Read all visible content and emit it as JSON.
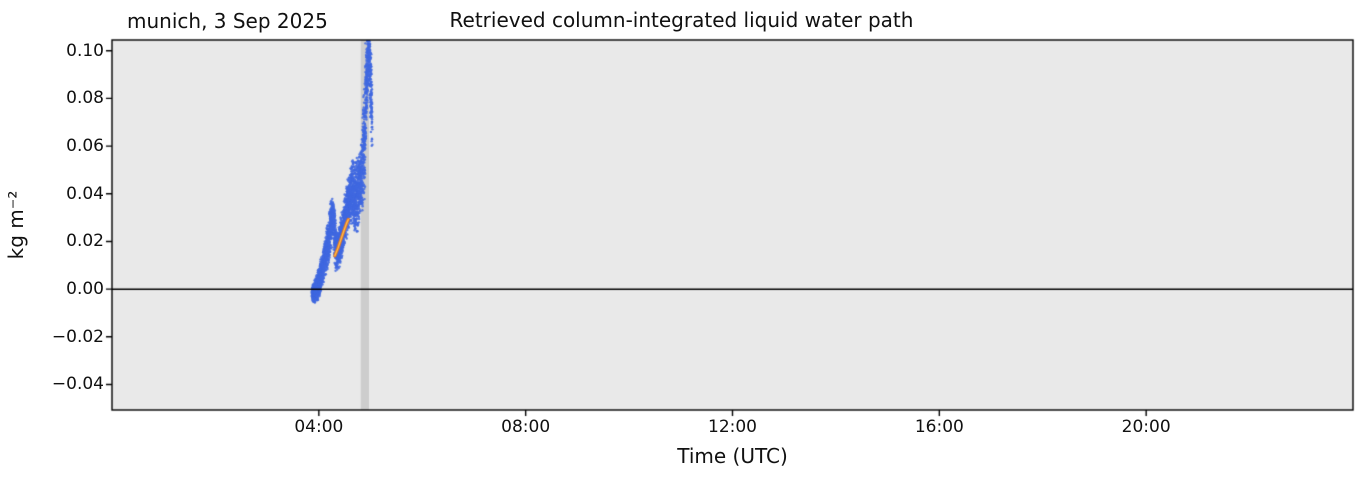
{
  "chart_data": {
    "type": "scatter",
    "title": "Retrieved column-integrated liquid water path",
    "subtitle_left": "munich, 3 Sep 2025",
    "xlabel": "Time (UTC)",
    "ylabel": "kg m⁻²",
    "x_range_hours": [
      0,
      24
    ],
    "y_range": [
      -0.0507,
      0.1045
    ],
    "grid": false,
    "legend": "none",
    "plot_bg_color": "#e9e9e9",
    "frame_color": "#000000",
    "x_ticks": [
      {
        "hour": 4,
        "label": "04:00"
      },
      {
        "hour": 8,
        "label": "08:00"
      },
      {
        "hour": 12,
        "label": "12:00"
      },
      {
        "hour": 16,
        "label": "16:00"
      },
      {
        "hour": 20,
        "label": "20:00"
      }
    ],
    "y_ticks": [
      {
        "value": 0.1,
        "label": "0.10"
      },
      {
        "value": 0.08,
        "label": "0.08"
      },
      {
        "value": 0.06,
        "label": "0.06"
      },
      {
        "value": 0.04,
        "label": "0.04"
      },
      {
        "value": 0.02,
        "label": "0.02"
      },
      {
        "value": 0.0,
        "label": "0.00"
      },
      {
        "value": -0.02,
        "label": "−0.02"
      },
      {
        "value": -0.04,
        "label": "−0.04"
      }
    ],
    "zero_line": {
      "value": 0.0,
      "color": "#000000"
    },
    "shaded_band": {
      "start_hour": 4.81,
      "end_hour": 4.97,
      "color": "#cdcdcd"
    },
    "series": [
      {
        "name": "lwp-scatter",
        "type": "scatter",
        "color": "#4169e1",
        "marker": "dot",
        "backbone_hour_value_spread": [
          [
            3.87,
            -0.0015,
            0.0025
          ],
          [
            3.93,
            -0.001,
            0.0035
          ],
          [
            3.98,
            0.001,
            0.004
          ],
          [
            4.03,
            0.005,
            0.005
          ],
          [
            4.08,
            0.009,
            0.005
          ],
          [
            4.13,
            0.014,
            0.006
          ],
          [
            4.18,
            0.019,
            0.007
          ],
          [
            4.23,
            0.026,
            0.008
          ],
          [
            4.27,
            0.031,
            0.005
          ],
          [
            4.31,
            0.021,
            0.009
          ],
          [
            4.35,
            0.016,
            0.006
          ],
          [
            4.4,
            0.018,
            0.006
          ],
          [
            4.45,
            0.023,
            0.007
          ],
          [
            4.5,
            0.029,
            0.007
          ],
          [
            4.55,
            0.034,
            0.008
          ],
          [
            4.6,
            0.038,
            0.008
          ],
          [
            4.65,
            0.041,
            0.009
          ],
          [
            4.7,
            0.038,
            0.011
          ],
          [
            4.75,
            0.04,
            0.011
          ],
          [
            4.8,
            0.044,
            0.01
          ],
          [
            4.84,
            0.05,
            0.012
          ],
          [
            4.88,
            0.063,
            0.018
          ],
          [
            4.91,
            0.08,
            0.018
          ],
          [
            4.94,
            0.093,
            0.011
          ],
          [
            4.97,
            0.098,
            0.007
          ],
          [
            5.0,
            0.088,
            0.012
          ],
          [
            5.03,
            0.072,
            0.012
          ]
        ]
      },
      {
        "name": "smoothed-fit-line",
        "type": "line",
        "color": "#e8761f",
        "core_color": "#ffc04d",
        "points_hour_value": [
          [
            4.31,
            0.014
          ],
          [
            4.37,
            0.0172
          ],
          [
            4.43,
            0.021
          ],
          [
            4.49,
            0.0248
          ],
          [
            4.54,
            0.0278
          ],
          [
            4.57,
            0.0292
          ]
        ]
      }
    ]
  }
}
